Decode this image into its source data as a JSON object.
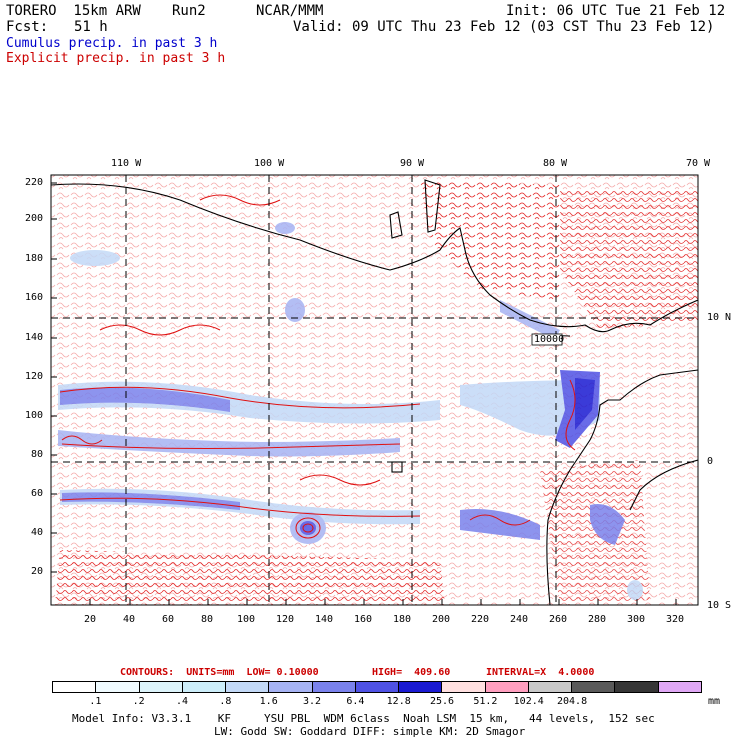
{
  "header": {
    "model": "TORERO  15km ARW",
    "run": "Run2",
    "org": "NCAR/MMM",
    "init": "Init: 06 UTC Tue 21 Feb 12",
    "fcst_label": "Fcst:",
    "fcst_value": "51 h",
    "valid": "Valid: 09 UTC Thu 23 Feb 12 (03 CST Thu 23 Feb 12)"
  },
  "legend": {
    "cumulus": "Cumulus precip. in past 3 h",
    "explicit": "Explicit precip. in past 3 h"
  },
  "map": {
    "top_lon_labels": [
      "110 W",
      "100 W",
      "90 W",
      "80 W",
      "70 W"
    ],
    "right_lat_labels": [
      "10 N",
      "0",
      "10 S"
    ],
    "left_axis_labels": [
      "220",
      "200",
      "180",
      "160",
      "140",
      "120",
      "100",
      "80",
      "60",
      "40",
      "20"
    ],
    "bottom_axis_labels": [
      "20",
      "40",
      "60",
      "80",
      "100",
      "120",
      "140",
      "160",
      "180",
      "200",
      "220",
      "240",
      "260",
      "280",
      "300",
      "320"
    ],
    "label_10000": "10000"
  },
  "contours": {
    "label": "CONTOURS:  UNITS=mm  LOW= 0.10000",
    "high": "HIGH=  409.60",
    "interval": "INTERVAL=X  4.0000"
  },
  "colorbar": {
    "colors": [
      "#ffffff",
      "#f0fbff",
      "#ddf4fb",
      "#cdeefa",
      "#c3d9f7",
      "#a6b3f3",
      "#7a82ec",
      "#4f52e4",
      "#1a1ad2",
      "#ffe0e0",
      "#ff9fbf",
      "#c8c8c8",
      "#5a5a5a",
      "#363636",
      "#e0a8f5"
    ],
    "labels": [
      ".1",
      ".2",
      ".4",
      ".8",
      "1.6",
      "3.2",
      "6.4",
      "12.8",
      "25.6",
      "51.2",
      "102.4",
      "204.8"
    ],
    "units": "mm"
  },
  "footer": {
    "line1": "Model Info: V3.3.1    KF     YSU PBL  WDM 6class  Noah LSM  15 km,   44 levels,  152 sec",
    "line2": "LW: Godd SW: Goddard DIFF: simple KM: 2D Smagor"
  }
}
